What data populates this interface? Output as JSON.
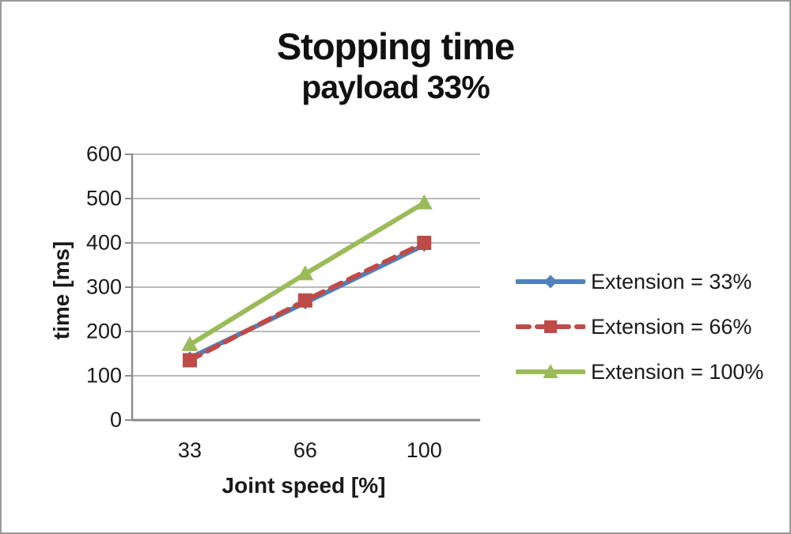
{
  "chart": {
    "title": "Stopping time",
    "subtitle": "payload 33%"
  },
  "chart_data": {
    "type": "line",
    "title": "Stopping time",
    "subtitle": "payload 33%",
    "xlabel": "Joint speed [%]",
    "ylabel": "time [ms]",
    "x": [
      33,
      66,
      100
    ],
    "x_tick_labels": [
      "33",
      "66",
      "100"
    ],
    "y_ticks": [
      0,
      100,
      200,
      300,
      400,
      500,
      600
    ],
    "ylim": [
      0,
      600
    ],
    "xlim": [
      16.5,
      116
    ],
    "grid": "horizontal-only",
    "legend_position": "right",
    "series": [
      {
        "name": "Extension = 33%",
        "values": [
          140,
          265,
          395
        ],
        "color": "#4F81BD",
        "marker": "diamond",
        "line_style": "solid"
      },
      {
        "name": "Extension = 66%",
        "values": [
          135,
          270,
          400
        ],
        "color": "#BE4B48",
        "marker": "square",
        "line_style": "dashed"
      },
      {
        "name": "Extension = 100%",
        "values": [
          170,
          330,
          490
        ],
        "color": "#9BBB59",
        "marker": "triangle",
        "line_style": "solid"
      }
    ],
    "colors": {
      "gridline": "#a3a3a3",
      "axis": "#8c8c8c",
      "text": "#1a1a1a",
      "background": "#ffffff",
      "border": "#999999"
    }
  }
}
